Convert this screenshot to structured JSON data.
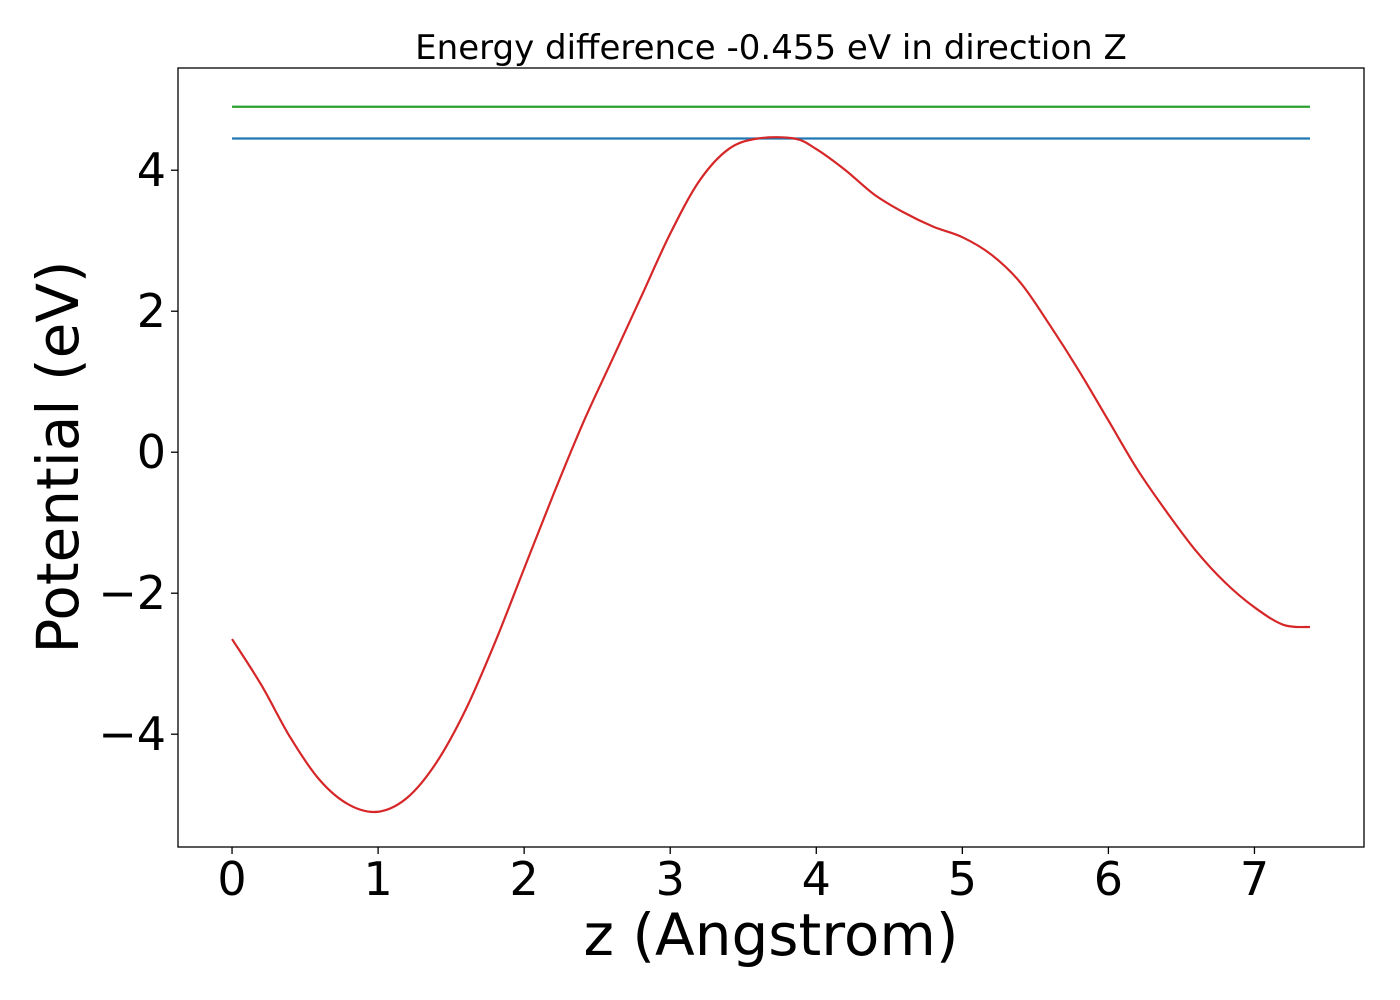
{
  "chart_data": {
    "type": "line",
    "title": "Energy difference -0.455 eV in direction Z",
    "xlabel": "z (Angstrom)",
    "ylabel": "Potential (eV)",
    "xlim": [
      -0.37,
      7.75
    ],
    "ylim": [
      -5.6,
      5.45
    ],
    "xticks": [
      0,
      1,
      2,
      3,
      4,
      5,
      6,
      7
    ],
    "xtick_labels": [
      "0",
      "1",
      "2",
      "3",
      "4",
      "5",
      "6",
      "7"
    ],
    "yticks": [
      -4,
      -2,
      0,
      2,
      4
    ],
    "ytick_labels": [
      "−4",
      "−2",
      "0",
      "2",
      "4"
    ],
    "grid": false,
    "series": [
      {
        "color": "#d62728",
        "x": [
          0.0,
          0.2,
          0.4,
          0.6,
          0.8,
          1.0,
          1.2,
          1.4,
          1.6,
          1.8,
          2.0,
          2.2,
          2.4,
          2.6,
          2.8,
          3.0,
          3.2,
          3.4,
          3.6,
          3.85,
          4.0,
          4.2,
          4.4,
          4.6,
          4.8,
          5.0,
          5.2,
          5.4,
          5.6,
          5.8,
          6.0,
          6.2,
          6.4,
          6.6,
          6.8,
          7.0,
          7.2,
          7.38
        ],
        "y": [
          -2.65,
          -3.3,
          -4.05,
          -4.65,
          -5.0,
          -5.1,
          -4.9,
          -4.4,
          -3.65,
          -2.7,
          -1.65,
          -0.6,
          0.4,
          1.3,
          2.2,
          3.1,
          3.85,
          4.3,
          4.45,
          4.45,
          4.3,
          4.0,
          3.65,
          3.4,
          3.2,
          3.05,
          2.8,
          2.4,
          1.8,
          1.15,
          0.45,
          -0.25,
          -0.85,
          -1.4,
          -1.85,
          -2.2,
          -2.45,
          -2.48
        ]
      },
      {
        "color": "#1f77b4",
        "x": [
          0.0,
          7.38
        ],
        "y": [
          4.45,
          4.45
        ]
      },
      {
        "color": "#2ca02c",
        "x": [
          0.0,
          7.38
        ],
        "y": [
          4.9,
          4.9
        ]
      }
    ]
  }
}
